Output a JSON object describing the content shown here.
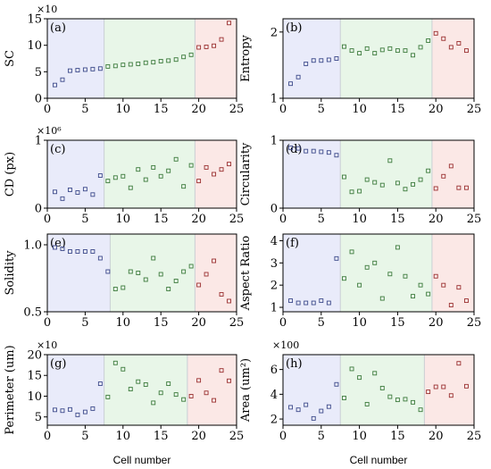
{
  "chart_data": [
    {
      "panel": "(a)",
      "type": "scatter",
      "ylabel": "SC",
      "multiplier": "×10",
      "xlim": [
        0,
        25
      ],
      "ylim": [
        0,
        15
      ],
      "xticks": [
        0,
        5,
        10,
        15,
        20,
        25
      ],
      "yticks": [
        0,
        5,
        10,
        15
      ],
      "xtick_labels": [
        "0",
        "5",
        "10",
        "15",
        "20",
        "25"
      ],
      "ytick_labels": [
        "0",
        "5",
        "10",
        "15"
      ],
      "regions": [
        {
          "from": 0,
          "to": 7.5,
          "color": "#e9ebfa"
        },
        {
          "from": 7.5,
          "to": 19.5,
          "color": "#e8f6e8"
        },
        {
          "from": 19.5,
          "to": 25,
          "color": "#fbe8e6"
        }
      ],
      "series": [
        {
          "x": [
            1,
            2,
            3,
            4,
            5,
            6,
            7
          ],
          "y": [
            2.5,
            3.5,
            5.2,
            5.3,
            5.4,
            5.5,
            5.6
          ],
          "color": "#3d4a8a"
        },
        {
          "x": [
            8,
            9,
            10,
            11,
            12,
            13,
            14,
            15,
            16,
            17,
            18,
            19
          ],
          "y": [
            6.0,
            6.1,
            6.3,
            6.4,
            6.5,
            6.7,
            6.8,
            7.0,
            7.1,
            7.3,
            7.8,
            8.2
          ],
          "color": "#3c7a3c"
        },
        {
          "x": [
            20,
            21,
            22,
            23,
            24
          ],
          "y": [
            9.6,
            9.7,
            9.9,
            11.1,
            14.2
          ],
          "color": "#9a3030"
        }
      ]
    },
    {
      "panel": "(b)",
      "type": "scatter",
      "ylabel": "Entropy",
      "multiplier": "",
      "xlim": [
        0,
        25
      ],
      "ylim": [
        1,
        2.2
      ],
      "xticks": [
        0,
        5,
        10,
        15,
        20,
        25
      ],
      "yticks": [
        1,
        2
      ],
      "xtick_labels": [
        "0",
        "5",
        "10",
        "15",
        "20",
        "25"
      ],
      "ytick_labels": [
        "1",
        "2"
      ],
      "regions": [
        {
          "from": 0,
          "to": 7.5,
          "color": "#e9ebfa"
        },
        {
          "from": 7.5,
          "to": 19.5,
          "color": "#e8f6e8"
        },
        {
          "from": 19.5,
          "to": 25,
          "color": "#fbe8e6"
        }
      ],
      "series": [
        {
          "x": [
            1,
            2,
            3,
            4,
            5,
            6,
            7
          ],
          "y": [
            1.22,
            1.32,
            1.52,
            1.57,
            1.57,
            1.58,
            1.6
          ],
          "color": "#3d4a8a"
        },
        {
          "x": [
            8,
            9,
            10,
            11,
            12,
            13,
            14,
            15,
            16,
            17,
            18,
            19
          ],
          "y": [
            1.78,
            1.72,
            1.68,
            1.75,
            1.68,
            1.73,
            1.75,
            1.72,
            1.72,
            1.65,
            1.77,
            1.87
          ],
          "color": "#3c7a3c"
        },
        {
          "x": [
            20,
            21,
            22,
            23,
            24
          ],
          "y": [
            1.98,
            1.9,
            1.77,
            1.83,
            1.72
          ],
          "color": "#9a3030"
        }
      ]
    },
    {
      "panel": "(c)",
      "type": "scatter",
      "ylabel": "CD (px)",
      "multiplier": "×10⁶",
      "xlim": [
        0,
        25
      ],
      "ylim": [
        0,
        1
      ],
      "xticks": [
        0,
        5,
        10,
        15,
        20,
        25
      ],
      "yticks": [
        0,
        1
      ],
      "xtick_labels": [
        "0",
        "5",
        "10",
        "15",
        "20",
        "25"
      ],
      "ytick_labels": [
        "0",
        "1"
      ],
      "regions": [
        {
          "from": 0,
          "to": 7.5,
          "color": "#e9ebfa"
        },
        {
          "from": 7.5,
          "to": 19.5,
          "color": "#e8f6e8"
        },
        {
          "from": 19.5,
          "to": 25,
          "color": "#fbe8e6"
        }
      ],
      "series": [
        {
          "x": [
            1,
            2,
            3,
            4,
            5,
            6,
            7
          ],
          "y": [
            0.24,
            0.14,
            0.27,
            0.23,
            0.28,
            0.2,
            0.48
          ],
          "color": "#3d4a8a"
        },
        {
          "x": [
            8,
            9,
            10,
            11,
            12,
            13,
            14,
            15,
            16,
            17,
            18,
            19
          ],
          "y": [
            0.4,
            0.45,
            0.47,
            0.3,
            0.57,
            0.42,
            0.6,
            0.47,
            0.55,
            0.72,
            0.32,
            0.63
          ],
          "color": "#3c7a3c"
        },
        {
          "x": [
            20,
            21,
            22,
            23,
            24
          ],
          "y": [
            0.4,
            0.6,
            0.5,
            0.57,
            0.65
          ],
          "color": "#9a3030"
        }
      ]
    },
    {
      "panel": "(d)",
      "type": "scatter",
      "ylabel": "Circularity",
      "multiplier": "",
      "xlim": [
        0,
        25
      ],
      "ylim": [
        0,
        1
      ],
      "xticks": [
        0,
        5,
        10,
        15,
        20,
        25
      ],
      "yticks": [
        0,
        1
      ],
      "xtick_labels": [
        "0",
        "5",
        "10",
        "15",
        "20",
        "25"
      ],
      "ytick_labels": [
        "0",
        "1"
      ],
      "regions": [
        {
          "from": 0,
          "to": 7.5,
          "color": "#e9ebfa"
        },
        {
          "from": 7.5,
          "to": 19.5,
          "color": "#e8f6e8"
        },
        {
          "from": 19.5,
          "to": 25,
          "color": "#fbe8e6"
        }
      ],
      "series": [
        {
          "x": [
            1,
            2,
            3,
            4,
            5,
            6,
            7
          ],
          "y": [
            0.89,
            0.88,
            0.84,
            0.84,
            0.83,
            0.82,
            0.78
          ],
          "color": "#3d4a8a"
        },
        {
          "x": [
            8,
            9,
            10,
            11,
            12,
            13,
            14,
            15,
            16,
            17,
            18,
            19
          ],
          "y": [
            0.46,
            0.24,
            0.25,
            0.42,
            0.38,
            0.34,
            0.7,
            0.37,
            0.28,
            0.35,
            0.42,
            0.55
          ],
          "color": "#3c7a3c"
        },
        {
          "x": [
            20,
            21,
            22,
            23,
            24
          ],
          "y": [
            0.29,
            0.47,
            0.62,
            0.3,
            0.3
          ],
          "color": "#9a3030"
        }
      ]
    },
    {
      "panel": "(e)",
      "type": "scatter",
      "ylabel": "Solidity",
      "multiplier": "",
      "xlim": [
        0,
        25
      ],
      "ylim": [
        0.5,
        1.08
      ],
      "xticks": [
        0,
        5,
        10,
        15,
        20,
        25
      ],
      "yticks": [
        0.5,
        1.0
      ],
      "xtick_labels": [
        "0",
        "5",
        "10",
        "15",
        "20",
        "25"
      ],
      "ytick_labels": [
        "0.5",
        "1.0"
      ],
      "regions": [
        {
          "from": 0,
          "to": 8.3,
          "color": "#e9ebfa"
        },
        {
          "from": 8.3,
          "to": 19.5,
          "color": "#e8f6e8"
        },
        {
          "from": 19.5,
          "to": 25,
          "color": "#fbe8e6"
        }
      ],
      "series": [
        {
          "x": [
            1,
            2,
            3,
            4,
            5,
            6,
            7,
            8
          ],
          "y": [
            0.98,
            0.97,
            0.95,
            0.95,
            0.95,
            0.95,
            0.9,
            0.8
          ],
          "color": "#3d4a8a"
        },
        {
          "x": [
            9,
            10,
            11,
            12,
            13,
            14,
            15,
            16,
            17,
            18,
            19
          ],
          "y": [
            0.67,
            0.68,
            0.8,
            0.79,
            0.74,
            0.9,
            0.78,
            0.67,
            0.73,
            0.8,
            0.84
          ],
          "color": "#3c7a3c"
        },
        {
          "x": [
            20,
            21,
            22,
            23,
            24
          ],
          "y": [
            0.7,
            0.78,
            0.88,
            0.63,
            0.58
          ],
          "color": "#9a3030"
        }
      ]
    },
    {
      "panel": "(f)",
      "type": "scatter",
      "ylabel": "Aspect Ratio",
      "multiplier": "",
      "xlim": [
        0,
        25
      ],
      "ylim": [
        0.8,
        4.3
      ],
      "xticks": [
        0,
        5,
        10,
        15,
        20,
        25
      ],
      "yticks": [
        1,
        2,
        3,
        4
      ],
      "xtick_labels": [
        "0",
        "5",
        "10",
        "15",
        "20",
        "25"
      ],
      "ytick_labels": [
        "1",
        "2",
        "3",
        "4"
      ],
      "regions": [
        {
          "from": 0,
          "to": 7.5,
          "color": "#e9ebfa"
        },
        {
          "from": 7.5,
          "to": 19.5,
          "color": "#e8f6e8"
        },
        {
          "from": 19.5,
          "to": 25,
          "color": "#fbe8e6"
        }
      ],
      "series": [
        {
          "x": [
            1,
            2,
            3,
            4,
            5,
            6,
            7
          ],
          "y": [
            1.3,
            1.2,
            1.2,
            1.2,
            1.3,
            1.2,
            3.2
          ],
          "color": "#3d4a8a"
        },
        {
          "x": [
            8,
            9,
            10,
            11,
            12,
            13,
            14,
            15,
            16,
            17,
            18,
            19
          ],
          "y": [
            2.3,
            3.5,
            2.0,
            2.8,
            3.0,
            1.4,
            2.5,
            3.7,
            2.4,
            1.5,
            2.0,
            1.6
          ],
          "color": "#3c7a3c"
        },
        {
          "x": [
            20,
            21,
            22,
            23,
            24
          ],
          "y": [
            2.4,
            2.0,
            1.1,
            1.9,
            1.3
          ],
          "color": "#9a3030"
        }
      ]
    },
    {
      "panel": "(g)",
      "type": "scatter",
      "ylabel": "Perimeter (um)",
      "xlabel": "Cell number",
      "multiplier": "×10",
      "xlim": [
        0,
        25
      ],
      "ylim": [
        3,
        20
      ],
      "xticks": [
        0,
        5,
        10,
        15,
        20,
        25
      ],
      "yticks": [
        5,
        10,
        15,
        20
      ],
      "xtick_labels": [
        "0",
        "5",
        "10",
        "15",
        "20",
        "25"
      ],
      "ytick_labels": [
        "5",
        "10",
        "15",
        "20"
      ],
      "regions": [
        {
          "from": 0,
          "to": 7.5,
          "color": "#e9ebfa"
        },
        {
          "from": 7.5,
          "to": 18.5,
          "color": "#e8f6e8"
        },
        {
          "from": 18.5,
          "to": 25,
          "color": "#fbe8e6"
        }
      ],
      "series": [
        {
          "x": [
            1,
            2,
            3,
            4,
            5,
            6,
            7
          ],
          "y": [
            6.7,
            6.5,
            6.8,
            5.5,
            6.2,
            7.0,
            13.0
          ],
          "color": "#3d4a8a"
        },
        {
          "x": [
            8,
            9,
            10,
            11,
            12,
            13,
            14,
            15,
            16,
            17,
            18
          ],
          "y": [
            9.8,
            18.0,
            16.5,
            11.7,
            13.5,
            12.8,
            8.4,
            10.8,
            13.0,
            10.4,
            9.2
          ],
          "color": "#3c7a3c"
        },
        {
          "x": [
            19,
            20,
            21,
            22,
            23,
            24
          ],
          "y": [
            10.0,
            13.8,
            10.8,
            9.0,
            16.2,
            13.7
          ],
          "color": "#9a3030"
        }
      ]
    },
    {
      "panel": "(h)",
      "type": "scatter",
      "ylabel": "Area (um²)",
      "xlabel": "Cell number",
      "multiplier": "×100",
      "xlim": [
        0,
        25
      ],
      "ylim": [
        1.5,
        7.2
      ],
      "xticks": [
        0,
        5,
        10,
        15,
        20,
        25
      ],
      "yticks": [
        2,
        4,
        6
      ],
      "xtick_labels": [
        "0",
        "5",
        "10",
        "15",
        "20",
        "25"
      ],
      "ytick_labels": [
        "2",
        "4",
        "6"
      ],
      "regions": [
        {
          "from": 0,
          "to": 7.5,
          "color": "#e9ebfa"
        },
        {
          "from": 7.5,
          "to": 18.5,
          "color": "#e8f6e8"
        },
        {
          "from": 18.5,
          "to": 25,
          "color": "#fbe8e6"
        }
      ],
      "series": [
        {
          "x": [
            1,
            2,
            3,
            4,
            5,
            6,
            7
          ],
          "y": [
            2.95,
            2.75,
            3.15,
            2.05,
            2.65,
            3.0,
            4.8
          ],
          "color": "#3d4a8a"
        },
        {
          "x": [
            8,
            9,
            10,
            11,
            12,
            13,
            14,
            15,
            16,
            17,
            18
          ],
          "y": [
            3.7,
            6.05,
            5.35,
            3.2,
            5.7,
            4.5,
            3.8,
            3.55,
            3.6,
            3.35,
            2.75
          ],
          "color": "#3c7a3c"
        },
        {
          "x": [
            19,
            20,
            21,
            22,
            23,
            24
          ],
          "y": [
            4.2,
            4.6,
            4.6,
            3.9,
            6.5,
            4.65
          ],
          "color": "#9a3030"
        }
      ]
    }
  ]
}
